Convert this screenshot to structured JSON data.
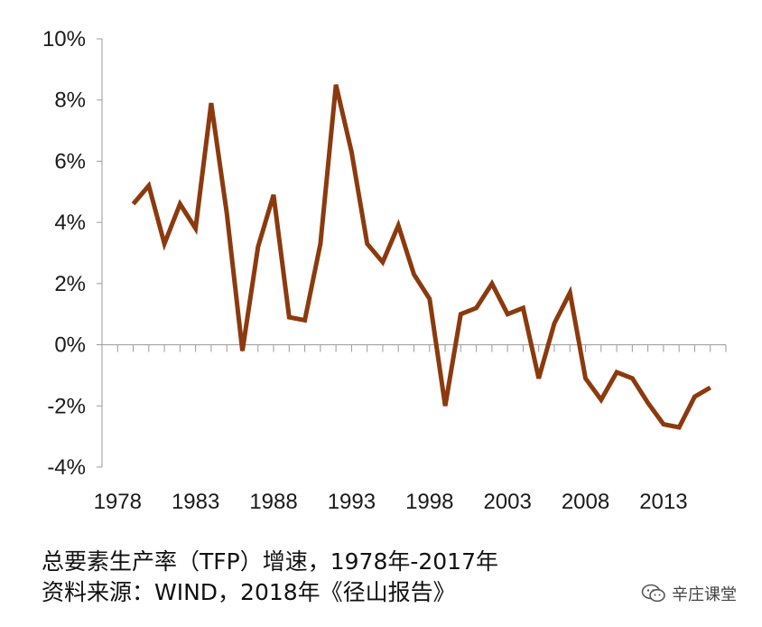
{
  "chart_data": {
    "type": "line",
    "title": "总要素生产率（TFP）增速，1978年-2017年",
    "source": "资料来源：WIND，2018年《径山报告》",
    "x": [
      1979,
      1980,
      1981,
      1982,
      1983,
      1984,
      1985,
      1986,
      1987,
      1988,
      1989,
      1990,
      1991,
      1992,
      1993,
      1994,
      1995,
      1996,
      1997,
      1998,
      1999,
      2000,
      2001,
      2002,
      2003,
      2004,
      2005,
      2006,
      2007,
      2008,
      2009,
      2010,
      2011,
      2012,
      2013,
      2014,
      2015,
      2016
    ],
    "series": [
      {
        "name": "TFP增速",
        "color": "#8B3A0E",
        "values": [
          4.6,
          5.2,
          3.3,
          4.6,
          3.8,
          7.9,
          4.3,
          -0.2,
          3.2,
          4.9,
          0.9,
          0.8,
          3.3,
          8.5,
          6.3,
          3.3,
          2.7,
          3.9,
          2.3,
          1.5,
          -2.0,
          1.0,
          1.2,
          2.0,
          1.0,
          1.2,
          -1.1,
          0.7,
          1.7,
          -1.1,
          -1.8,
          -0.9,
          -1.1,
          -1.9,
          -2.6,
          -2.7,
          -1.7,
          -1.4
        ]
      }
    ],
    "xlim": [
      1977,
      2017
    ],
    "ylim": [
      -4,
      10
    ],
    "x_ticks": [
      "1978",
      "1983",
      "1988",
      "1993",
      "1998",
      "2003",
      "2008",
      "2013"
    ],
    "x_tick_values": [
      1978,
      1983,
      1988,
      1993,
      1998,
      2003,
      2008,
      2013
    ],
    "y_ticks": [
      "-4%",
      "-2%",
      "0%",
      "2%",
      "4%",
      "6%",
      "8%",
      "10%"
    ],
    "y_tick_values": [
      -4,
      -2,
      0,
      2,
      4,
      6,
      8,
      10
    ],
    "xlabel": "",
    "ylabel": "",
    "grid": false
  },
  "watermark": {
    "text": "辛庄课堂",
    "icon": "wechat-icon"
  }
}
